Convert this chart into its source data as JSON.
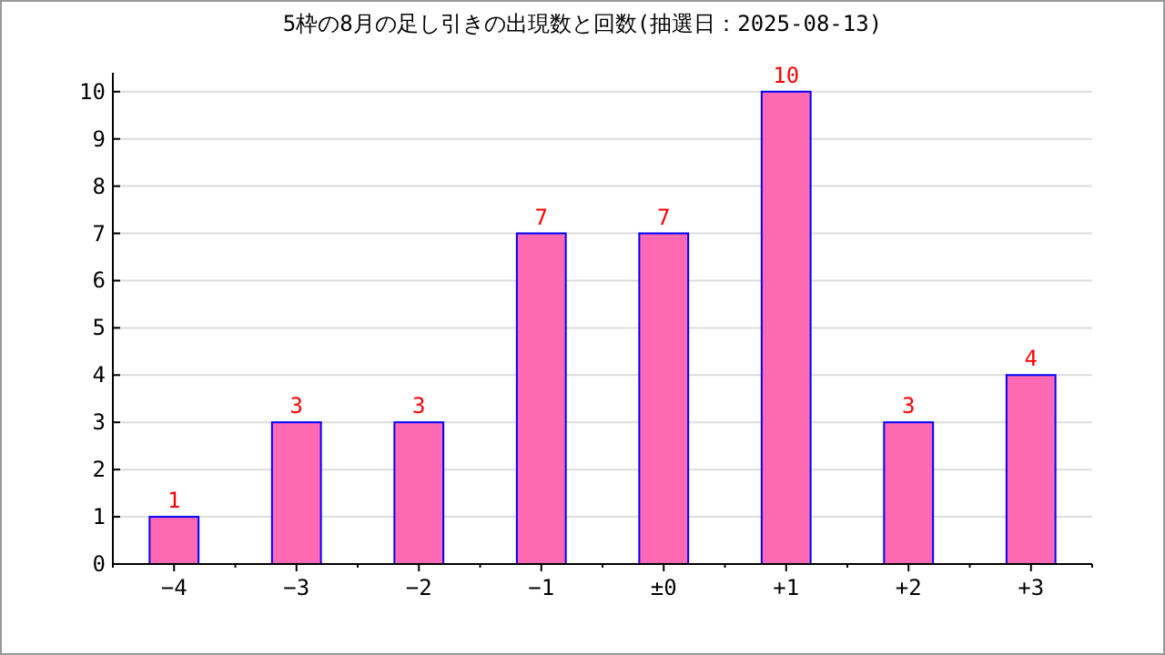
{
  "chart_data": {
    "type": "bar",
    "title": "5枠の8月の足し引きの出現数と回数(抽選日：2025-08-13)",
    "categories": [
      "−4",
      "−3",
      "−2",
      "−1",
      "±0",
      "+1",
      "+2",
      "+3"
    ],
    "series": [
      {
        "color": "#ff69b4",
        "values": [
          1,
          3,
          3,
          7,
          7,
          10,
          3,
          4
        ]
      }
    ],
    "ylim": [
      0,
      10.4
    ],
    "yticks": [
      0,
      1,
      2,
      3,
      4,
      5,
      6,
      7,
      8,
      9,
      10
    ],
    "grid": "y",
    "data_labels": true
  }
}
